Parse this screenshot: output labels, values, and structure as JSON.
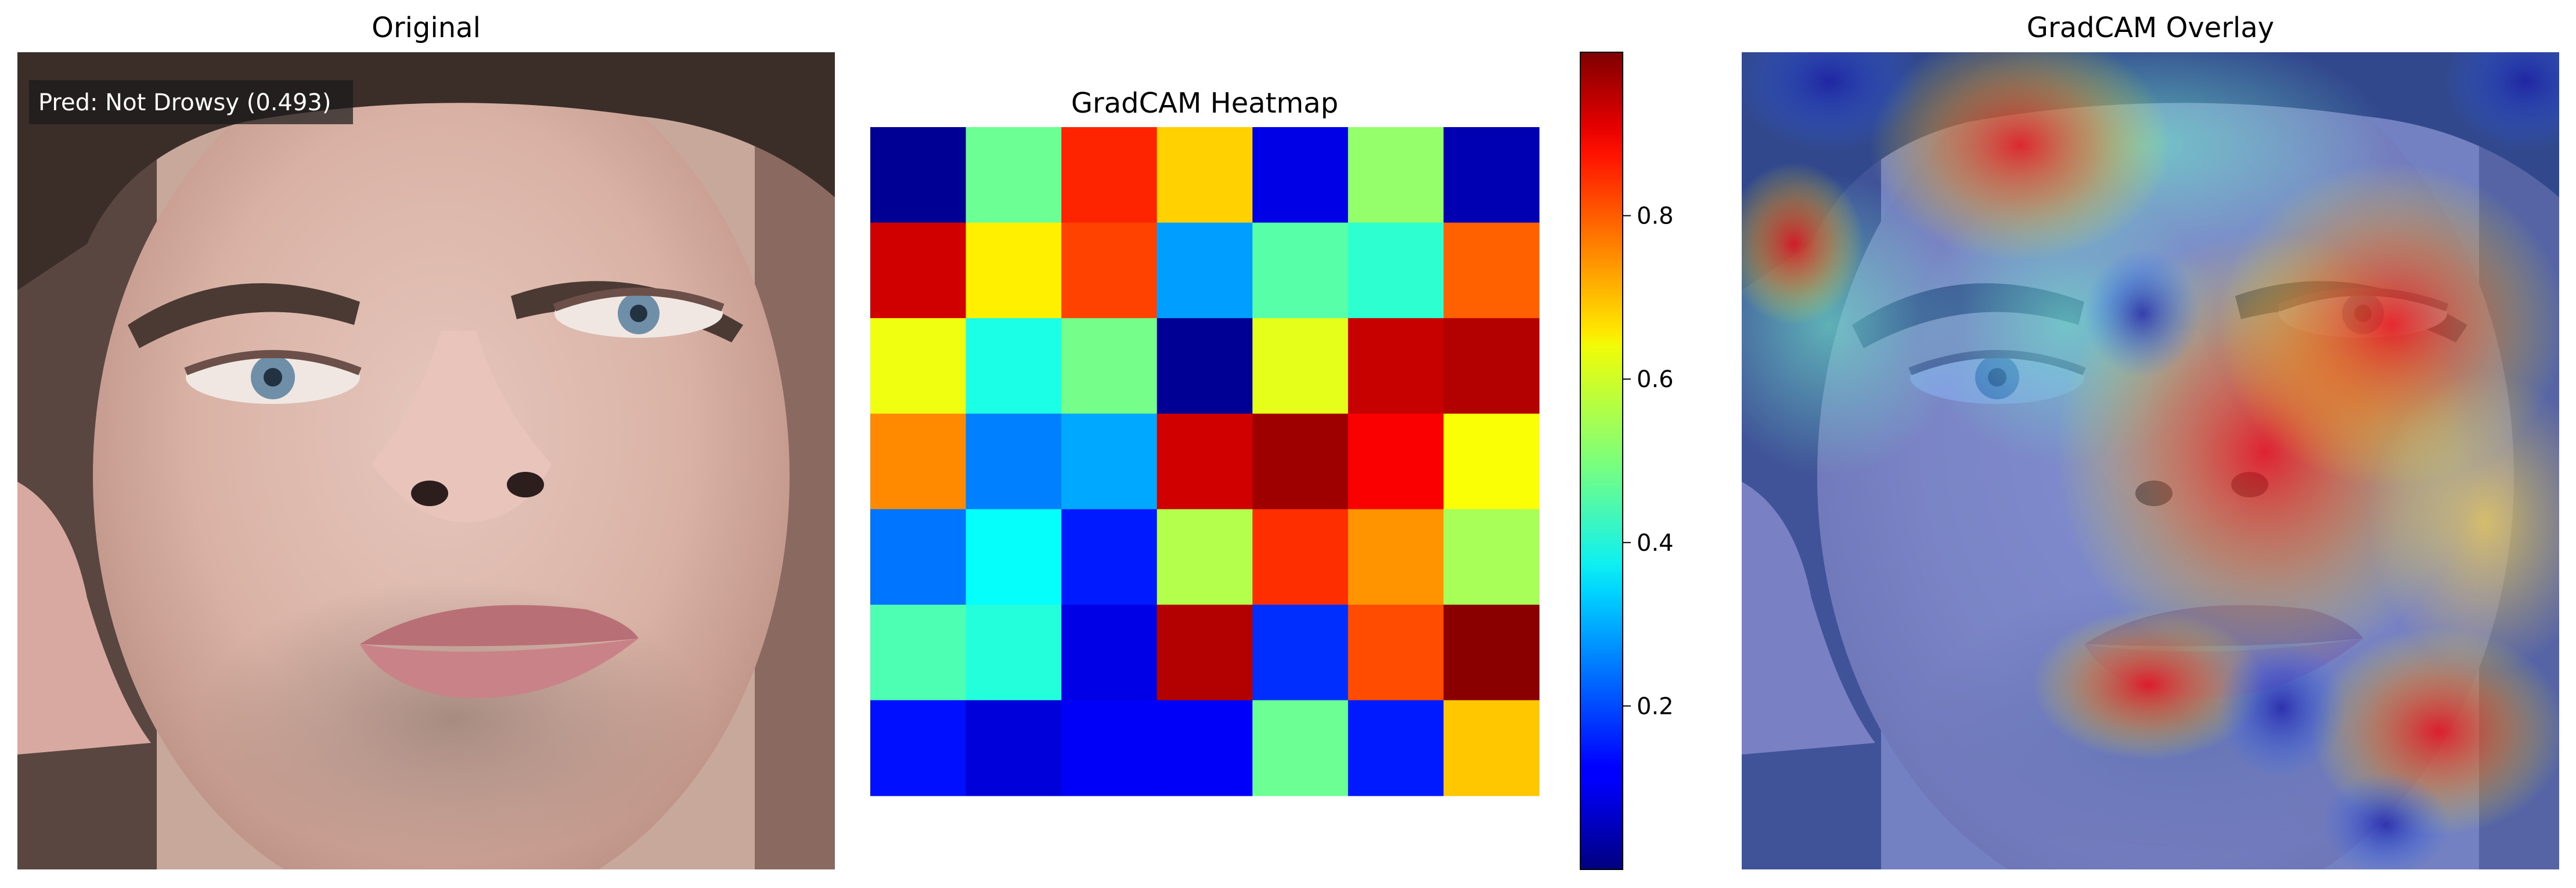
{
  "panels": {
    "original": {
      "title": "Original",
      "prediction_label": "Pred: Not Drowsy (0.493)"
    },
    "heatmap": {
      "title": "GradCAM Heatmap"
    },
    "overlay": {
      "title": "GradCAM Overlay"
    }
  },
  "chart_data": {
    "type": "heatmap",
    "title": "GradCAM Heatmap",
    "colormap": "jet",
    "rows": 7,
    "cols": 7,
    "values": [
      [
        0.02,
        0.48,
        0.84,
        0.67,
        0.1,
        0.52,
        0.05
      ],
      [
        0.92,
        0.64,
        0.81,
        0.28,
        0.46,
        0.42,
        0.78
      ],
      [
        0.61,
        0.4,
        0.49,
        0.02,
        0.6,
        0.93,
        0.95
      ],
      [
        0.74,
        0.25,
        0.29,
        0.92,
        0.97,
        0.88,
        0.62
      ],
      [
        0.24,
        0.38,
        0.15,
        0.55,
        0.83,
        0.73,
        0.54
      ],
      [
        0.45,
        0.41,
        0.1,
        0.95,
        0.17,
        0.8,
        0.99
      ],
      [
        0.14,
        0.09,
        0.12,
        0.12,
        0.48,
        0.15,
        0.68
      ]
    ],
    "colorbar": {
      "vmin": 0.0,
      "vmax": 1.0,
      "ticks": [
        0.2,
        0.4,
        0.6,
        0.8
      ],
      "tick_labels": [
        "0.2",
        "0.4",
        "0.6",
        "0.8"
      ]
    }
  }
}
